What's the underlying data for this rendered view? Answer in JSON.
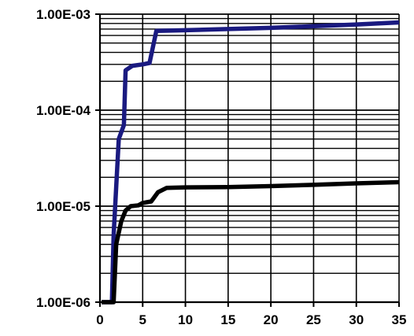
{
  "chart_data": {
    "type": "line",
    "title": "",
    "xlabel": "",
    "ylabel": "",
    "x_range": [
      0,
      35
    ],
    "y_range": [
      1e-06,
      0.001
    ],
    "y_scale": "log",
    "grid": true,
    "legend": "none",
    "x_ticks": [
      {
        "value": 0,
        "label": "0"
      },
      {
        "value": 5,
        "label": "5"
      },
      {
        "value": 10,
        "label": "10"
      },
      {
        "value": 15,
        "label": "15"
      },
      {
        "value": 20,
        "label": "20"
      },
      {
        "value": 25,
        "label": "25"
      },
      {
        "value": 30,
        "label": "30"
      },
      {
        "value": 35,
        "label": "35"
      }
    ],
    "y_ticks": [
      {
        "value": 0.001,
        "label": "1.00E-03"
      },
      {
        "value": 0.0001,
        "label": "1.00E-04"
      },
      {
        "value": 1e-05,
        "label": "1.00E-05"
      },
      {
        "value": 1e-06,
        "label": "1.00E-06"
      }
    ],
    "series": [
      {
        "color": "#1a1a80",
        "points": [
          [
            0.2,
            1e-06
          ],
          [
            1.4,
            1e-06
          ],
          [
            1.6,
            5e-06
          ],
          [
            2.2,
            5e-05
          ],
          [
            2.8,
            7e-05
          ],
          [
            3.0,
            0.00026
          ],
          [
            3.8,
            0.00029
          ],
          [
            5.0,
            0.0003
          ],
          [
            5.8,
            0.00031
          ],
          [
            6.6,
            0.00067
          ],
          [
            10,
            0.00068
          ],
          [
            20,
            0.00072
          ],
          [
            30,
            0.00078
          ],
          [
            35,
            0.00082
          ]
        ]
      },
      {
        "color": "#000000",
        "points": [
          [
            0.2,
            1e-06
          ],
          [
            1.6,
            1e-06
          ],
          [
            1.9,
            4e-06
          ],
          [
            2.5,
            7e-06
          ],
          [
            3.0,
            9e-06
          ],
          [
            3.6,
            1e-05
          ],
          [
            4.5,
            1.02e-05
          ],
          [
            5.0,
            1.08e-05
          ],
          [
            6.0,
            1.12e-05
          ],
          [
            6.8,
            1.4e-05
          ],
          [
            7.8,
            1.55e-05
          ],
          [
            10,
            1.57e-05
          ],
          [
            15,
            1.58e-05
          ],
          [
            20,
            1.62e-05
          ],
          [
            25,
            1.67e-05
          ],
          [
            30,
            1.73e-05
          ],
          [
            35,
            1.78e-05
          ]
        ]
      }
    ]
  }
}
